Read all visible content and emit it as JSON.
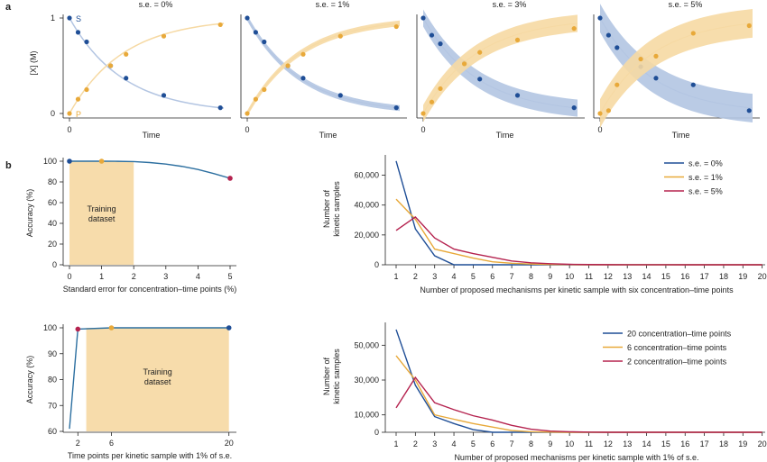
{
  "panel_labels": {
    "a": "a",
    "b": "b"
  },
  "colors": {
    "S": "#1f4e96",
    "P": "#e8a93a",
    "band_S": "#b3c5e2",
    "band_P": "#f6d9a3",
    "acc_line": "#2c6fa0",
    "red": "#b5234f",
    "training": "#f7dcab"
  },
  "chart_data": [
    {
      "type": "line",
      "title": "s.e. = 0%",
      "ylabel": "[X] (M)",
      "xlabel": "Time",
      "ytick_labels": [
        "0",
        "1"
      ],
      "xtick_labels": [
        "0"
      ],
      "series_labels": [
        "S",
        "P"
      ],
      "band": 0.0,
      "S_points": [
        [
          0,
          1.0
        ],
        [
          0.05,
          0.85
        ],
        [
          0.1,
          0.75
        ],
        [
          0.24,
          0.5
        ],
        [
          0.33,
          0.37
        ],
        [
          0.55,
          0.19
        ],
        [
          0.88,
          0.06
        ]
      ],
      "P_points": [
        [
          0,
          0.0
        ],
        [
          0.05,
          0.15
        ],
        [
          0.1,
          0.25
        ],
        [
          0.24,
          0.5
        ],
        [
          0.33,
          0.62
        ],
        [
          0.55,
          0.81
        ],
        [
          0.88,
          0.93
        ]
      ]
    },
    {
      "type": "line",
      "title": "s.e. = 1%",
      "xlabel": "Time",
      "xtick_labels": [
        "0"
      ],
      "band": 0.03,
      "S_points": [
        [
          0,
          1.0
        ],
        [
          0.05,
          0.85
        ],
        [
          0.1,
          0.75
        ],
        [
          0.24,
          0.5
        ],
        [
          0.33,
          0.37
        ],
        [
          0.55,
          0.19
        ],
        [
          0.88,
          0.06
        ]
      ],
      "P_points": [
        [
          0,
          0.0
        ],
        [
          0.05,
          0.15
        ],
        [
          0.1,
          0.25
        ],
        [
          0.24,
          0.5
        ],
        [
          0.33,
          0.62
        ],
        [
          0.55,
          0.81
        ],
        [
          0.88,
          0.91
        ]
      ]
    },
    {
      "type": "line",
      "title": "s.e. = 3%",
      "xlabel": "Time",
      "xtick_labels": [
        "0"
      ],
      "band": 0.09,
      "S_points": [
        [
          0,
          1.0
        ],
        [
          0.05,
          0.82
        ],
        [
          0.1,
          0.73
        ],
        [
          0.24,
          0.53
        ],
        [
          0.33,
          0.36
        ],
        [
          0.55,
          0.19
        ],
        [
          0.88,
          0.06
        ]
      ],
      "P_points": [
        [
          0,
          0.0
        ],
        [
          0.05,
          0.12
        ],
        [
          0.1,
          0.26
        ],
        [
          0.24,
          0.52
        ],
        [
          0.33,
          0.64
        ],
        [
          0.55,
          0.77
        ],
        [
          0.88,
          0.89
        ]
      ]
    },
    {
      "type": "line",
      "title": "s.e. = 5%",
      "xlabel": "Time",
      "xtick_labels": [
        "0"
      ],
      "band": 0.15,
      "S_points": [
        [
          0,
          1.0
        ],
        [
          0.05,
          0.82
        ],
        [
          0.1,
          0.69
        ],
        [
          0.24,
          0.49
        ],
        [
          0.33,
          0.37
        ],
        [
          0.55,
          0.3
        ],
        [
          0.88,
          0.03
        ]
      ],
      "P_points": [
        [
          0,
          0.0
        ],
        [
          0.05,
          0.03
        ],
        [
          0.1,
          0.3
        ],
        [
          0.24,
          0.57
        ],
        [
          0.33,
          0.6
        ],
        [
          0.55,
          0.84
        ],
        [
          0.88,
          0.92
        ]
      ]
    },
    {
      "type": "line",
      "xlabel": "Standard error for concentration–time points (%)",
      "ylabel": "Accuracy (%)",
      "xlim": [
        0,
        5
      ],
      "ylim": [
        0,
        100
      ],
      "xticks": [
        0,
        1,
        2,
        3,
        4,
        5
      ],
      "yticks": [
        0,
        20,
        40,
        60,
        80,
        100
      ],
      "training_label": "Training\ndataset",
      "training_range": [
        0,
        2
      ],
      "x": [
        0,
        0.5,
        1,
        1.5,
        2,
        2.5,
        3,
        3.5,
        4,
        4.5,
        5
      ],
      "y": [
        100,
        100,
        100,
        99.9,
        99.6,
        98.7,
        97.2,
        95,
        92,
        88,
        83.5
      ],
      "markers": [
        {
          "x": 0,
          "y": 100,
          "color": "S"
        },
        {
          "x": 1,
          "y": 100,
          "color": "P"
        },
        {
          "x": 5,
          "y": 83.5,
          "color": "red"
        }
      ]
    },
    {
      "type": "line",
      "xlabel": "Number of proposed mechanisms per kinetic sample with six concentration–time points",
      "ylabel": "Number of\nkinetic samples",
      "ylim": [
        0,
        70000
      ],
      "yticks": [
        0,
        20000,
        40000,
        60000
      ],
      "ytick_labels": [
        "0",
        "20,000",
        "40,000",
        "60,000"
      ],
      "categories": [
        1,
        2,
        3,
        4,
        5,
        6,
        7,
        8,
        9,
        10,
        11,
        12,
        13,
        14,
        15,
        16,
        17,
        18,
        19,
        20
      ],
      "legend_position": "top-right",
      "series": [
        {
          "name": "s.e. = 0%",
          "color": "S",
          "values": [
            69500,
            24000,
            6000,
            0,
            0,
            0,
            0,
            0,
            0,
            0,
            0,
            0,
            0,
            0,
            0,
            0,
            0,
            0,
            0,
            0
          ]
        },
        {
          "name": "s.e. = 1%",
          "color": "P",
          "values": [
            44000,
            30500,
            10500,
            7500,
            4500,
            2000,
            1000,
            500,
            200,
            100,
            0,
            0,
            0,
            0,
            0,
            0,
            0,
            0,
            0,
            0
          ]
        },
        {
          "name": "s.e. = 5%",
          "color": "red",
          "values": [
            23000,
            32000,
            18000,
            10500,
            7500,
            5000,
            2500,
            1300,
            700,
            300,
            150,
            80,
            40,
            20,
            10,
            0,
            0,
            0,
            0,
            0
          ]
        }
      ]
    },
    {
      "type": "line",
      "xlabel": "Time points per kinetic sample with 1% of s.e.",
      "ylabel": "Accuracy (%)",
      "xlim": [
        0,
        20
      ],
      "ylim": [
        60,
        100
      ],
      "xticks": [
        2,
        6,
        20
      ],
      "yticks": [
        60,
        70,
        80,
        90,
        100
      ],
      "training_label": "Training\ndataset",
      "training_range": [
        3,
        20
      ],
      "x": [
        1,
        2,
        6,
        20
      ],
      "y": [
        61,
        99.5,
        100,
        100
      ],
      "markers": [
        {
          "x": 2,
          "y": 99.5,
          "color": "red"
        },
        {
          "x": 6,
          "y": 100,
          "color": "P"
        },
        {
          "x": 20,
          "y": 100,
          "color": "S"
        }
      ]
    },
    {
      "type": "line",
      "xlabel": "Number of proposed mechanisms per kinetic sample with 1% of s.e.",
      "ylabel": "Number of\nkinetic samples",
      "ylim": [
        0,
        60000
      ],
      "yticks": [
        0,
        10000,
        30000,
        50000
      ],
      "ytick_labels": [
        "0",
        "10,000",
        "30,000",
        "50,000"
      ],
      "categories": [
        1,
        2,
        3,
        4,
        5,
        6,
        7,
        8,
        9,
        10,
        11,
        12,
        13,
        14,
        15,
        16,
        17,
        18,
        19,
        20
      ],
      "legend_position": "top-right",
      "series": [
        {
          "name": "20 concentration–time points",
          "color": "S",
          "values": [
            59000,
            27000,
            9000,
            5000,
            1500,
            0,
            0,
            0,
            0,
            0,
            0,
            0,
            0,
            0,
            0,
            0,
            0,
            0,
            0,
            0
          ]
        },
        {
          "name": "6 concentration–time points",
          "color": "P",
          "values": [
            44000,
            30000,
            10000,
            7500,
            5000,
            3000,
            1000,
            300,
            100,
            0,
            0,
            0,
            0,
            0,
            0,
            0,
            0,
            0,
            0,
            0
          ]
        },
        {
          "name": "2 concentration–time points",
          "color": "red",
          "values": [
            14000,
            31500,
            17000,
            13000,
            9500,
            7000,
            4000,
            1800,
            700,
            300,
            100,
            0,
            0,
            0,
            0,
            0,
            0,
            0,
            0,
            0
          ]
        }
      ]
    }
  ]
}
